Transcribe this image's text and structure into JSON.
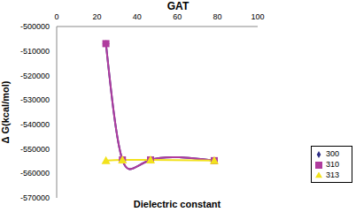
{
  "chart_data": {
    "type": "line",
    "title": "GAT",
    "x_label": "Dielectric constant",
    "y_label": "Δ G(kcal/mol)",
    "xlim": [
      0,
      100
    ],
    "xticks": [
      0,
      20,
      40,
      60,
      80,
      100
    ],
    "ylim": [
      -570000,
      -500000
    ],
    "yticks": [
      -570000,
      -560000,
      -550000,
      -540000,
      -530000,
      -520000,
      -510000,
      -500000
    ],
    "grid": false,
    "legend": "right",
    "series": [
      {
        "name": "300",
        "color": "#2e2e86",
        "marker": "diamond",
        "x": [
          24.5,
          32.7,
          46.7,
          78.4
        ],
        "values": [
          -507000,
          -554500,
          -554500,
          -554800
        ]
      },
      {
        "name": "310",
        "color": "#b03c9e",
        "marker": "square",
        "x": [
          24.5,
          32.7,
          46.7,
          78.4
        ],
        "values": [
          -507000,
          -554500,
          -554500,
          -554800
        ]
      },
      {
        "name": "313",
        "color": "#f2e21c",
        "marker": "triangle",
        "x": [
          24.5,
          32.7,
          46.7,
          78.4
        ],
        "values": [
          -554800,
          -554500,
          -554500,
          -554800
        ]
      }
    ]
  }
}
